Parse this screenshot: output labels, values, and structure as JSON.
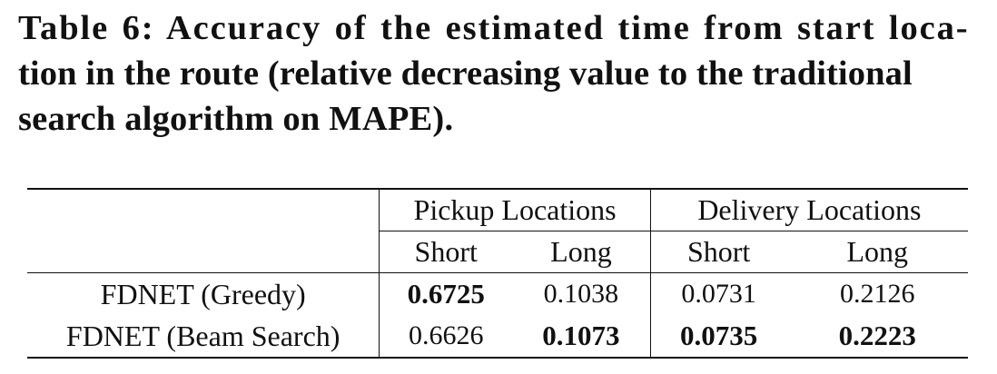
{
  "caption": {
    "line1": "Table 6: Accuracy of the estimated time from start loca-",
    "line2": "tion in the route (relative decreasing value to the traditional",
    "line3": "search algorithm on MAPE)."
  },
  "table": {
    "group_headers": [
      "Pickup Locations",
      "Delivery Locations"
    ],
    "sub_headers": [
      "Short",
      "Long",
      "Short",
      "Long"
    ],
    "rows": [
      {
        "model": "FDNET (Greedy)",
        "values": [
          "0.6725",
          "0.1038",
          "0.0731",
          "0.2126"
        ],
        "bold": [
          true,
          false,
          false,
          false
        ]
      },
      {
        "model": "FDNET (Beam Search)",
        "values": [
          "0.6626",
          "0.1073",
          "0.0735",
          "0.2223"
        ],
        "bold": [
          false,
          true,
          true,
          true
        ]
      }
    ]
  }
}
